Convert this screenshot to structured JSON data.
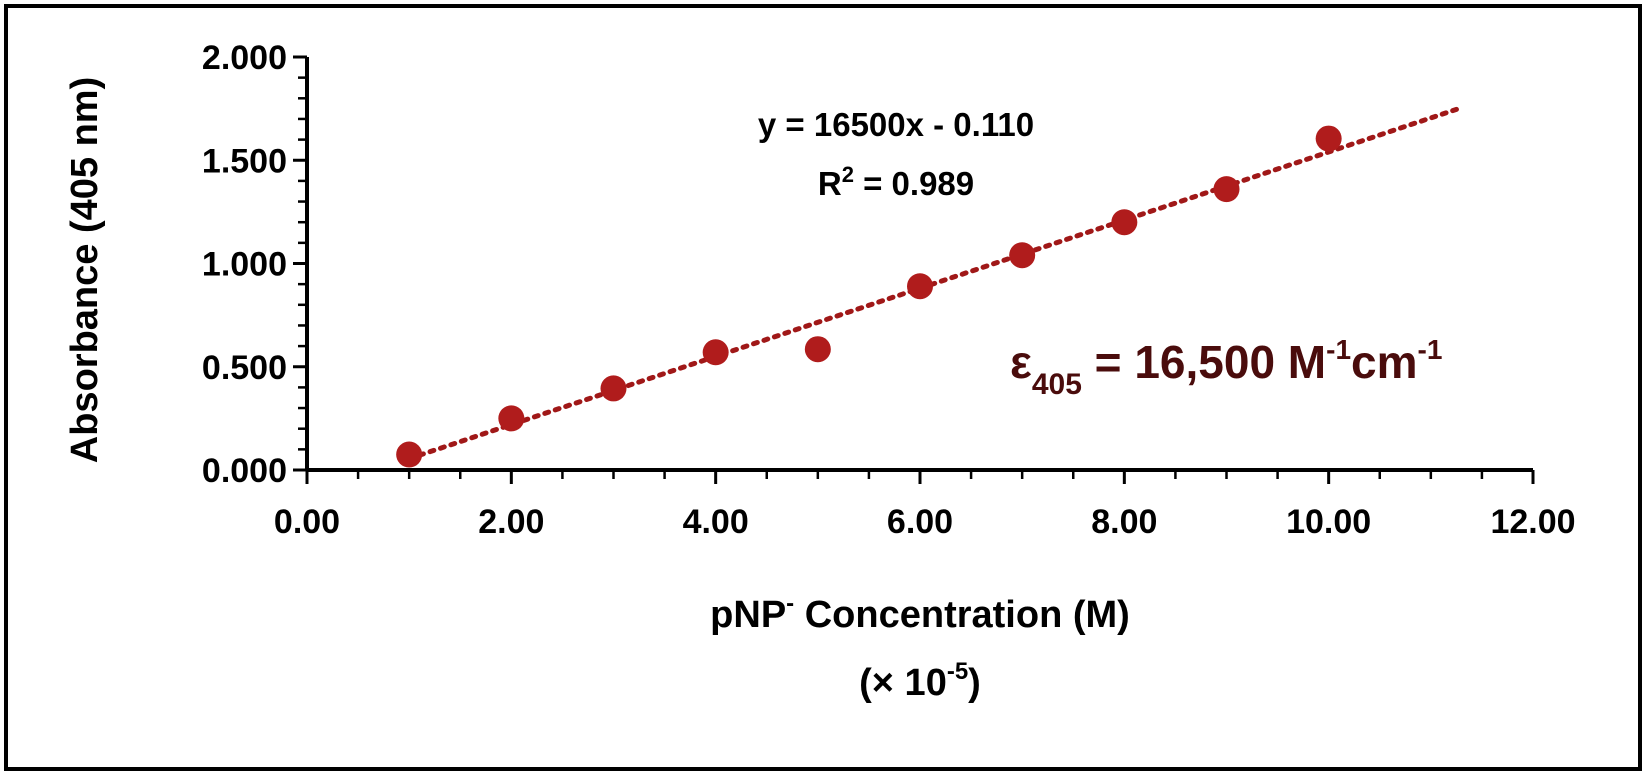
{
  "chart_data": {
    "type": "scatter",
    "xlabel": "pNP",
    "xlabel_superscript": "-",
    "xlabel_rest": " Concentration (M)",
    "xlabel_line2_prefix": "(× 10",
    "xlabel_line2_superscript": "-5",
    "xlabel_line2_suffix": ")",
    "ylabel": "Absorbance (405 nm)",
    "xlim": [
      0,
      12
    ],
    "ylim": [
      0,
      2
    ],
    "x_ticks": [
      "0.00",
      "2.00",
      "4.00",
      "6.00",
      "8.00",
      "10.00",
      "12.00"
    ],
    "x_tick_values": [
      0,
      2,
      4,
      6,
      8,
      10,
      12
    ],
    "y_ticks": [
      "0.000",
      "0.500",
      "1.000",
      "1.500",
      "2.000"
    ],
    "y_tick_values": [
      0,
      0.5,
      1.0,
      1.5,
      2.0
    ],
    "series": [
      {
        "x": [
          1,
          2,
          3,
          4,
          5,
          6,
          7,
          8,
          9,
          10
        ],
        "y": [
          0.075,
          0.25,
          0.395,
          0.57,
          0.585,
          0.89,
          1.04,
          1.2,
          1.36,
          1.605
        ]
      }
    ],
    "trendline": {
      "slope": 0.165,
      "intercept": -0.11,
      "x_start": 1,
      "x_end": 11.3,
      "style": "dotted"
    },
    "equation_text": "y = 16500x - 0.110",
    "r2_prefix": "R",
    "r2_superscript": "2",
    "r2_suffix": " = 0.989",
    "epsilon_symbol": "ε",
    "epsilon_subscript": "405",
    "epsilon_value": " = 16,500 M",
    "epsilon_sup1": "-1",
    "epsilon_unit": "cm",
    "epsilon_sup2": "-1",
    "grid": false,
    "legend": "none"
  },
  "colors": {
    "marker": "#b01c1c",
    "trendline": "#a01818",
    "epsilon_text": "#4a0c0c",
    "axis": "#000000"
  }
}
